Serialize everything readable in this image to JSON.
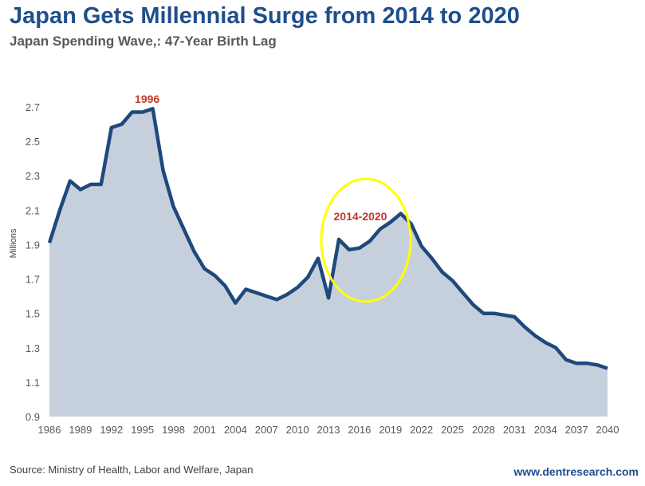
{
  "title": "Japan Gets Millennial Surge from 2014 to 2020",
  "subtitle": "Japan Spending Wave,: 47-Year Birth Lag",
  "source": "Source: Ministry of Health, Labor and Welfare, Japan",
  "website": "www.dentresearch.com",
  "chart_data": {
    "type": "area",
    "title": "Japan Gets Millennial Surge from 2014 to 2020",
    "subtitle": "Japan Spending Wave,: 47-Year Birth Lag",
    "xlabel": "",
    "ylabel": "Millions",
    "xlim": [
      1986,
      2040
    ],
    "ylim": [
      0.9,
      2.7
    ],
    "grid": false,
    "x_ticks": [
      "1986",
      "1989",
      "1992",
      "1995",
      "1998",
      "2001",
      "2004",
      "2007",
      "2010",
      "2013",
      "2016",
      "2019",
      "2022",
      "2025",
      "2028",
      "2031",
      "2034",
      "2037",
      "2040"
    ],
    "y_ticks": [
      "0.9",
      "1.1",
      "1.3",
      "1.5",
      "1.7",
      "1.9",
      "2.1",
      "2.3",
      "2.5",
      "2.7"
    ],
    "x": [
      1986,
      1987,
      1988,
      1989,
      1990,
      1991,
      1992,
      1993,
      1994,
      1995,
      1996,
      1997,
      1998,
      1999,
      2000,
      2001,
      2002,
      2003,
      2004,
      2005,
      2006,
      2007,
      2008,
      2009,
      2010,
      2011,
      2012,
      2013,
      2014,
      2015,
      2016,
      2017,
      2018,
      2019,
      2020,
      2021,
      2022,
      2023,
      2024,
      2025,
      2026,
      2027,
      2028,
      2029,
      2030,
      2031,
      2032,
      2033,
      2034,
      2035,
      2036,
      2037,
      2038,
      2039,
      2040
    ],
    "values": [
      1.91,
      2.1,
      2.27,
      2.22,
      2.25,
      2.25,
      2.58,
      2.6,
      2.67,
      2.67,
      2.69,
      2.33,
      2.12,
      1.99,
      1.86,
      1.76,
      1.72,
      1.66,
      1.56,
      1.64,
      1.62,
      1.6,
      1.58,
      1.61,
      1.65,
      1.71,
      1.82,
      1.59,
      1.93,
      1.87,
      1.88,
      1.92,
      1.99,
      2.03,
      2.08,
      2.02,
      1.89,
      1.82,
      1.74,
      1.69,
      1.62,
      1.55,
      1.5,
      1.5,
      1.49,
      1.48,
      1.42,
      1.37,
      1.33,
      1.3,
      1.23,
      1.21,
      1.21,
      1.2,
      1.18
    ],
    "line_color": "#1f497d",
    "fill_color": "#c6d0dc",
    "annotations": [
      {
        "text": "1996",
        "x": 1996,
        "color": "#c0392b"
      },
      {
        "text": "2014-2020",
        "x_range": [
          2014,
          2020
        ],
        "color": "#c0392b",
        "highlight": "yellow ellipse"
      }
    ]
  }
}
